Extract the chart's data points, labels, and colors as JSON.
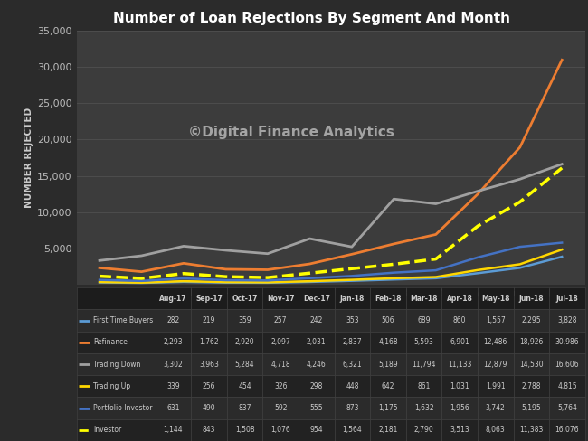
{
  "title": "Number of Loan Rejections By Segment And Month",
  "ylabel": "NUMBER REJECTED",
  "watermark": "©Digital Finance Analytics",
  "background_color": "#2b2b2b",
  "plot_bg_color": "#3c3c3c",
  "title_color": "#ffffff",
  "label_color": "#cccccc",
  "tick_color": "#bbbbbb",
  "grid_color": "#505050",
  "months": [
    "Aug-17",
    "Sep-17",
    "Oct-17",
    "Nov-17",
    "Dec-17",
    "Jan-18",
    "Feb-18",
    "Mar-18",
    "Apr-18",
    "May-18",
    "Jun-18",
    "Jul-18"
  ],
  "series": [
    {
      "name": "First Time Buyers",
      "color": "#5b9bd5",
      "linestyle": "solid",
      "linewidth": 1.8,
      "dashed": false,
      "values": [
        282,
        219,
        359,
        257,
        242,
        353,
        506,
        689,
        860,
        1557,
        2295,
        3828
      ]
    },
    {
      "name": "Refinance",
      "color": "#ed7d31",
      "linestyle": "solid",
      "linewidth": 2.0,
      "dashed": false,
      "values": [
        2293,
        1762,
        2920,
        2097,
        2031,
        2837,
        4168,
        5593,
        6901,
        12486,
        18926,
        30986
      ]
    },
    {
      "name": "Trading Down",
      "color": "#a0a0a0",
      "linestyle": "solid",
      "linewidth": 2.0,
      "dashed": false,
      "values": [
        3302,
        3963,
        5284,
        4718,
        4246,
        6321,
        5189,
        11794,
        11133,
        12879,
        14530,
        16606
      ]
    },
    {
      "name": "Trading Up",
      "color": "#ffd700",
      "linestyle": "solid",
      "linewidth": 1.8,
      "dashed": false,
      "values": [
        339,
        256,
        454,
        326,
        298,
        448,
        642,
        861,
        1031,
        1991,
        2788,
        4815
      ]
    },
    {
      "name": "Portfolio Investor",
      "color": "#4472c4",
      "linestyle": "solid",
      "linewidth": 1.8,
      "dashed": false,
      "values": [
        631,
        490,
        837,
        592,
        555,
        873,
        1175,
        1632,
        1956,
        3742,
        5195,
        5764
      ]
    },
    {
      "name": "Investor",
      "color": "#ffff00",
      "linestyle": "dashed",
      "linewidth": 2.5,
      "dashed": true,
      "values": [
        1144,
        843,
        1508,
        1076,
        954,
        1564,
        2181,
        2790,
        3513,
        8063,
        11383,
        16076
      ]
    }
  ],
  "ylim": [
    0,
    35000
  ],
  "yticks": [
    0,
    5000,
    10000,
    15000,
    20000,
    25000,
    30000,
    35000
  ],
  "ytick_labels": [
    "-",
    "5,000",
    "10,000",
    "15,000",
    "20,000",
    "25,000",
    "30,000",
    "35,000"
  ],
  "table_header_bg": "#1c1c1c",
  "table_row_bg1": "#2b2b2b",
  "table_row_bg2": "#222222",
  "table_text_color": "#cccccc",
  "table_border_color": "#444444"
}
